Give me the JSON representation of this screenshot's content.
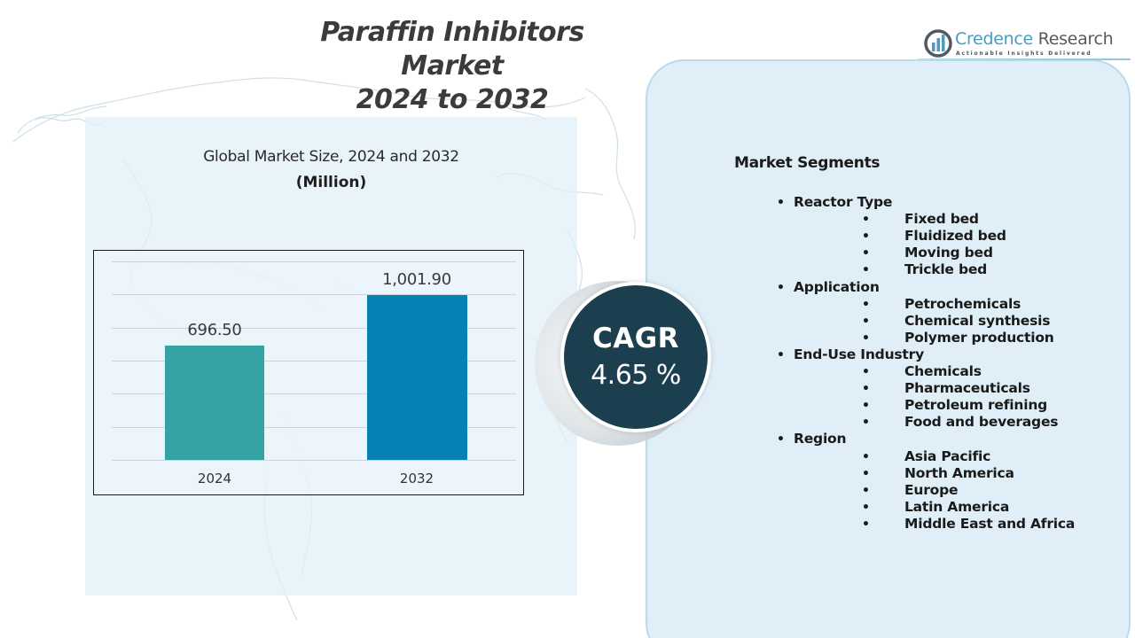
{
  "header": {
    "title_line1": "Paraffin Inhibitors Market",
    "title_line2": "2024 to 2032"
  },
  "logo": {
    "name_part1": "Credence",
    "name_part2": "Research",
    "tagline": "Actionable Insights Delivered",
    "icon": "bar-chart-in-circle-icon"
  },
  "chart": {
    "title": "Global Market Size,  2024 and 2032",
    "unit": "(Million)"
  },
  "chart_data": {
    "type": "bar",
    "title": "Global Market Size, 2024 and 2032",
    "subtitle": "(Million)",
    "categories": [
      "2024",
      "2032"
    ],
    "values": [
      696.5,
      1001.9
    ],
    "value_labels": [
      "696.50",
      "1,001.90"
    ],
    "colors": [
      "#35a3a3",
      "#0781b3"
    ],
    "xlabel": "",
    "ylabel": "",
    "ylim": [
      0,
      1200
    ],
    "grid": true,
    "legend": "none"
  },
  "cagr": {
    "label": "CAGR",
    "value": "4.65 %",
    "color": "#1b3f4f"
  },
  "segments": {
    "title": "Market Segments",
    "categories": [
      {
        "name": "Reactor Type",
        "items": [
          "Fixed bed",
          "Fluidized bed",
          "Moving bed",
          "Trickle bed"
        ]
      },
      {
        "name": "Application",
        "items": [
          "Petrochemicals",
          "Chemical synthesis",
          "Polymer production"
        ]
      },
      {
        "name": "End-Use Industry",
        "items": [
          "Chemicals",
          "Pharmaceuticals",
          "Petroleum refining",
          "Food and beverages"
        ]
      },
      {
        "name": "Region",
        "items": [
          "Asia Pacific",
          "North America",
          "Europe",
          "Latin America",
          "Middle East and Africa"
        ]
      }
    ]
  },
  "colors": {
    "teal_bar": "#35a3a3",
    "blue_bar": "#0781b3",
    "cagr_navy": "#1b3f4f",
    "panel_light_blue": "#dfeef7",
    "brand_blue": "#4a9cc0"
  }
}
